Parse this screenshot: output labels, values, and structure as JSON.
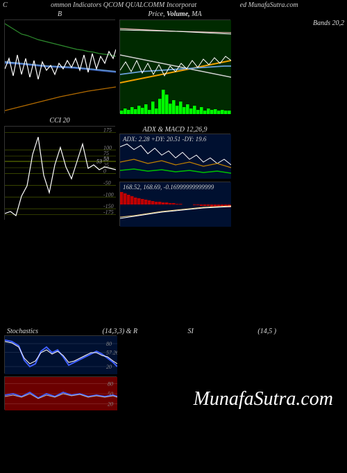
{
  "header": {
    "left": "C",
    "mid": "ommon Indicators QCOM QUALCOMM Incorporat",
    "right": "ed MunafaSutra.com"
  },
  "panels": {
    "bb": {
      "title": "B",
      "bands_label": "Bands 20,2",
      "bg": "#000000",
      "width": 160,
      "height": 135,
      "series": {
        "upper": {
          "color": "#2e8b2e",
          "width": 1.2,
          "points": [
            0,
            5,
            8,
            10,
            16,
            15,
            24,
            20,
            32,
            22,
            40,
            25,
            48,
            28,
            56,
            30,
            64,
            32,
            72,
            34,
            80,
            36,
            88,
            38,
            96,
            40,
            104,
            42,
            112,
            43,
            120,
            45,
            128,
            46,
            136,
            48,
            144,
            49,
            152,
            50,
            160,
            52
          ]
        },
        "mid": {
          "color": "#6ca0dc",
          "width": 2.0,
          "points": [
            0,
            60,
            20,
            62,
            40,
            64,
            60,
            66,
            80,
            67,
            100,
            68,
            120,
            70,
            140,
            72,
            160,
            74
          ]
        },
        "mid2": {
          "color": "#3a5fb0",
          "width": 1.5,
          "points": [
            0,
            62,
            20,
            63,
            40,
            65,
            60,
            67,
            80,
            68,
            100,
            69,
            120,
            71,
            140,
            73,
            160,
            75
          ]
        },
        "lower": {
          "color": "#b36b00",
          "width": 1.2,
          "points": [
            0,
            130,
            20,
            125,
            40,
            120,
            60,
            115,
            80,
            110,
            100,
            106,
            120,
            102,
            140,
            99,
            160,
            96
          ]
        },
        "price": {
          "color": "#ffffff",
          "width": 1.2,
          "points": [
            0,
            70,
            6,
            55,
            12,
            80,
            18,
            50,
            24,
            78,
            30,
            55,
            36,
            82,
            42,
            58,
            48,
            85,
            54,
            60,
            60,
            72,
            66,
            65,
            72,
            78,
            78,
            62,
            84,
            70,
            90,
            58,
            96,
            68,
            102,
            55,
            108,
            72,
            114,
            50,
            120,
            75,
            126,
            48,
            132,
            70,
            138,
            52,
            144,
            62,
            150,
            45,
            156,
            55,
            160,
            42
          ]
        }
      }
    },
    "ma": {
      "title_left": "Price,",
      "title_mid": "Volume,",
      "title_right": "MA",
      "bg": "#002a00",
      "width": 160,
      "height": 135,
      "series": {
        "top1": {
          "color": "#e0b0b0",
          "width": 1.2,
          "points": [
            0,
            12,
            40,
            14,
            80,
            16,
            120,
            17,
            160,
            18
          ]
        },
        "top2": {
          "color": "#ffffff",
          "width": 1.0,
          "points": [
            0,
            14,
            40,
            15,
            80,
            16,
            120,
            18,
            160,
            20
          ]
        },
        "ma1": {
          "color": "#f0a000",
          "width": 2.0,
          "points": [
            0,
            90,
            40,
            82,
            80,
            74,
            120,
            66,
            160,
            58
          ]
        },
        "ma2": {
          "color": "#d0d0d0",
          "width": 1.5,
          "points": [
            0,
            50,
            40,
            58,
            80,
            66,
            120,
            74,
            160,
            82
          ]
        },
        "ma3": {
          "color": "#6ca0dc",
          "width": 1.8,
          "points": [
            0,
            78,
            30,
            74,
            60,
            72,
            90,
            70,
            120,
            68,
            150,
            66,
            160,
            66
          ]
        },
        "price": {
          "color": "#ffffff",
          "width": 1.0,
          "points": [
            0,
            72,
            8,
            60,
            16,
            74,
            24,
            58,
            32,
            76,
            40,
            62,
            48,
            78,
            56,
            64,
            64,
            80,
            72,
            66,
            80,
            74,
            88,
            62,
            96,
            70,
            104,
            58,
            112,
            68,
            120,
            56,
            128,
            64,
            136,
            54,
            144,
            62,
            152,
            52,
            160,
            58
          ]
        }
      },
      "volume": {
        "color": "#00ff00",
        "base": 135,
        "bars": [
          5,
          8,
          6,
          10,
          7,
          12,
          9,
          14,
          6,
          18,
          8,
          22,
          35,
          28,
          15,
          20,
          12,
          18,
          10,
          14,
          8,
          12,
          6,
          10,
          5,
          8,
          6,
          7,
          5,
          6,
          5,
          5
        ]
      }
    },
    "cci": {
      "title": "CCI 20",
      "bg": "#000000",
      "width": 160,
      "height": 135,
      "grid_color": "#4a5a00",
      "grid_levels": [
        175,
        100,
        75,
        53,
        50,
        25,
        0,
        -50,
        -100,
        -150,
        -175
      ],
      "ylim": [
        -200,
        200
      ],
      "line": {
        "color": "#ffffff",
        "width": 1.2,
        "points": [
          0,
          125,
          8,
          122,
          16,
          128,
          24,
          100,
          32,
          85,
          40,
          40,
          48,
          15,
          56,
          70,
          64,
          95,
          72,
          55,
          80,
          30,
          88,
          58,
          96,
          75,
          104,
          50,
          112,
          25,
          120,
          60,
          128,
          55,
          136,
          62,
          144,
          58,
          152,
          60,
          160,
          62
        ]
      },
      "value_marker": "53"
    },
    "adx": {
      "title": "ADX     & MACD 12,26,9",
      "bg": "#001030",
      "width": 160,
      "height": 64,
      "label": "ADX: 2.28   +DY: 20.51 -DY: 19.6",
      "series": {
        "adx": {
          "color": "#ffffff",
          "width": 1.0,
          "points": [
            0,
            18,
            10,
            14,
            20,
            22,
            30,
            16,
            40,
            28,
            50,
            20,
            60,
            30,
            70,
            24,
            80,
            34,
            90,
            26,
            100,
            36,
            110,
            30,
            120,
            40,
            130,
            34,
            140,
            42,
            150,
            36,
            160,
            44
          ]
        },
        "plus": {
          "color": "#c08000",
          "width": 1.2,
          "points": [
            0,
            40,
            20,
            36,
            40,
            42,
            60,
            38,
            80,
            44,
            100,
            40,
            120,
            46,
            140,
            42,
            160,
            48
          ]
        },
        "minus": {
          "color": "#00c000",
          "width": 1.5,
          "points": [
            0,
            52,
            20,
            50,
            40,
            53,
            60,
            51,
            80,
            54,
            100,
            52,
            120,
            55,
            140,
            53,
            160,
            56
          ]
        }
      }
    },
    "macd": {
      "bg": "#001030",
      "width": 160,
      "height": 64,
      "label": "168.52,  168.69,  -0.16999999999999",
      "hist": {
        "pos_color": "#c00000",
        "neg_color": "#c00000",
        "base": 32,
        "bars": [
          18,
          16,
          14,
          12,
          10,
          9,
          8,
          7,
          6,
          5,
          4,
          4,
          3,
          3,
          2,
          2,
          1,
          1,
          0,
          0,
          0,
          -1,
          -1,
          -2,
          -2,
          -2,
          -3,
          -3,
          -3,
          -3,
          -4,
          -4
        ]
      },
      "sig1": {
        "color": "#f0d080",
        "width": 1.0,
        "points": [
          0,
          50,
          20,
          48,
          40,
          45,
          60,
          42,
          80,
          40,
          100,
          38,
          120,
          36,
          140,
          35,
          160,
          34
        ]
      },
      "sig2": {
        "color": "#ffffff",
        "width": 1.0,
        "points": [
          0,
          52,
          20,
          49,
          40,
          46,
          60,
          43,
          80,
          41,
          100,
          39,
          120,
          37,
          140,
          36,
          160,
          35
        ]
      }
    },
    "stoch": {
      "title_left": "Stochastics",
      "title_mid": "(14,3,3) & R",
      "title_mid2": "SI",
      "title_right": "(14,5                          )",
      "bg": "#001030",
      "width": 162,
      "height": 55,
      "levels": [
        80,
        57.26,
        20
      ],
      "k": {
        "color": "#4060ff",
        "width": 2.0,
        "points": [
          0,
          6,
          10,
          8,
          20,
          14,
          28,
          35,
          36,
          44,
          44,
          40,
          52,
          22,
          60,
          16,
          68,
          24,
          76,
          20,
          84,
          30,
          92,
          42,
          100,
          38,
          108,
          34,
          116,
          30,
          124,
          26,
          132,
          22,
          140,
          26,
          148,
          32,
          156,
          38,
          162,
          44
        ]
      },
      "d": {
        "color": "#ffffff",
        "width": 1.0,
        "points": [
          0,
          8,
          10,
          10,
          20,
          16,
          28,
          32,
          36,
          40,
          44,
          36,
          52,
          24,
          60,
          20,
          68,
          26,
          76,
          22,
          84,
          28,
          92,
          38,
          100,
          36,
          108,
          32,
          116,
          28,
          124,
          24,
          132,
          24,
          140,
          28,
          148,
          30,
          156,
          36,
          162,
          40
        ]
      }
    },
    "rsi": {
      "bg": "#6b0000",
      "width": 162,
      "height": 48,
      "levels": [
        80,
        50,
        20
      ],
      "line1": {
        "color": "#4060ff",
        "width": 1.8,
        "points": [
          0,
          26,
          12,
          24,
          24,
          28,
          36,
          22,
          48,
          30,
          60,
          24,
          72,
          28,
          84,
          22,
          96,
          26,
          108,
          24,
          120,
          28,
          132,
          26,
          144,
          28,
          156,
          26,
          162,
          28
        ]
      },
      "line2": {
        "color": "#c0c0c0",
        "width": 1.0,
        "points": [
          0,
          28,
          12,
          26,
          24,
          29,
          36,
          24,
          48,
          31,
          60,
          26,
          72,
          29,
          84,
          24,
          96,
          27,
          108,
          25,
          120,
          29,
          132,
          27,
          144,
          29,
          156,
          27,
          162,
          29
        ]
      },
      "label": "50.00"
    }
  },
  "watermark": "MunafaSutra.com"
}
